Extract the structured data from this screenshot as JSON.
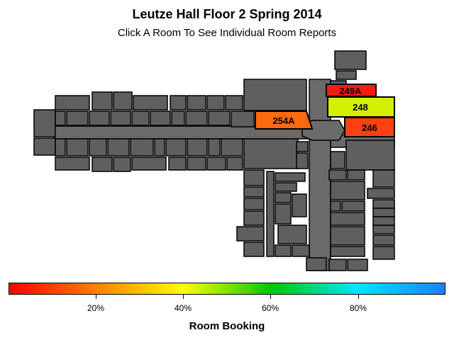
{
  "title": "Leutze Hall Floor 2 Spring 2014",
  "subtitle": "Click A Room To See Individual Room Reports",
  "rooms": [
    {
      "id": "249A",
      "label": "249A",
      "color": "#ff1a10"
    },
    {
      "id": "248",
      "label": "248",
      "color": "#d4f000"
    },
    {
      "id": "246",
      "label": "246",
      "color": "#ff4010"
    },
    {
      "id": "254A",
      "label": "254A",
      "color": "#ff6a10"
    }
  ],
  "legend": {
    "title": "Room Booking",
    "ticks": [
      "20%",
      "40%",
      "60%",
      "80%"
    ],
    "gradient_colors": [
      "#ff0000",
      "#ff8000",
      "#ffff00",
      "#00c800",
      "#00e5ff",
      "#1e7fff"
    ]
  }
}
